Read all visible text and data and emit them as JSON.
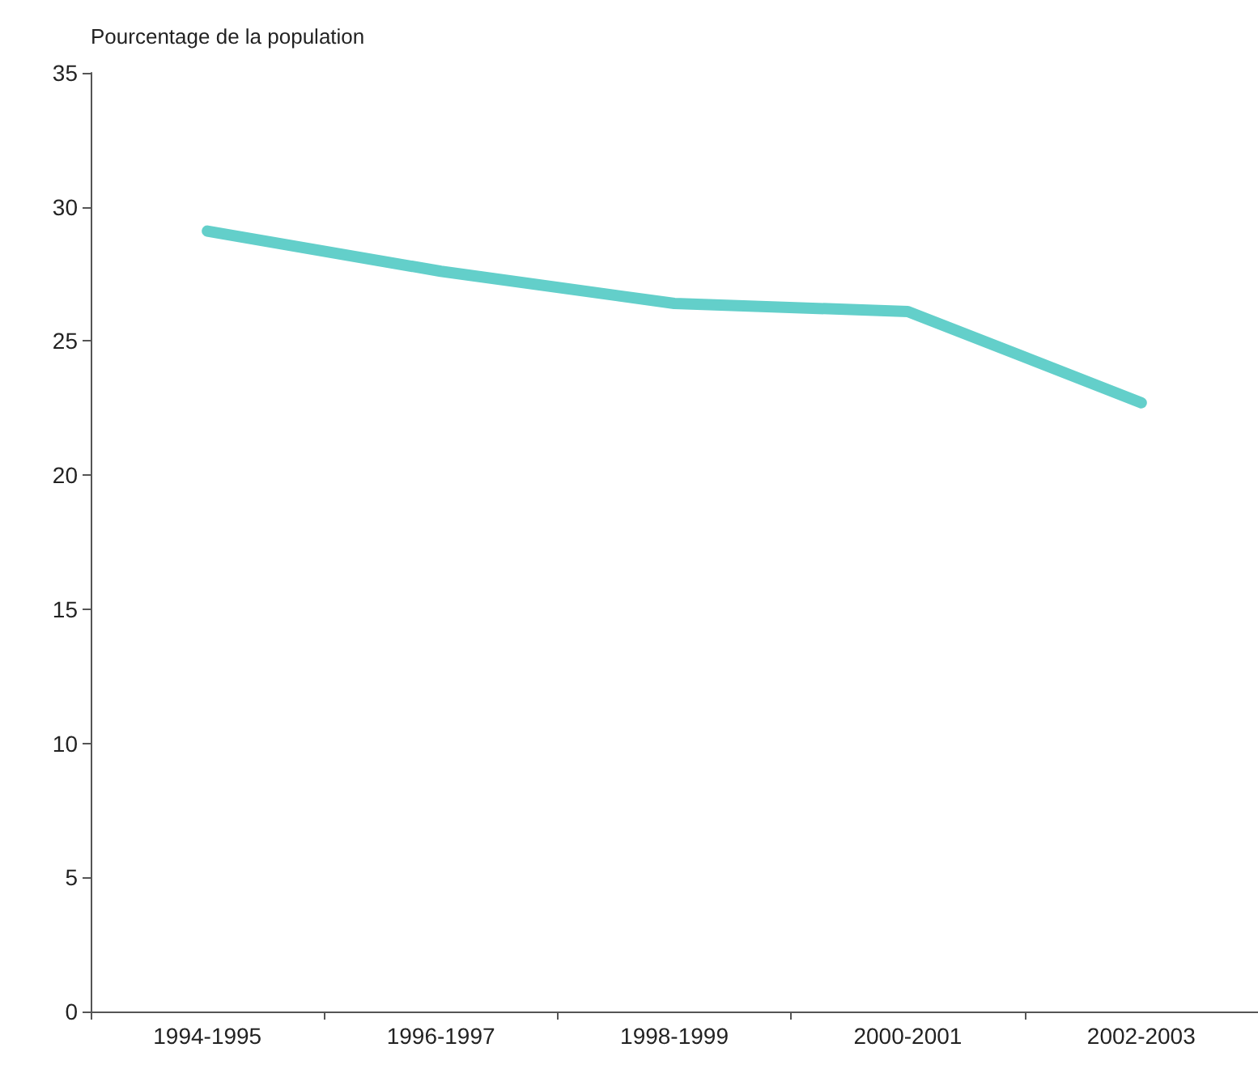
{
  "chart_data": {
    "type": "line",
    "ylabel": "Pourcentage de la population",
    "categories": [
      "1994-1995",
      "1996-1997",
      "1998-1999",
      "2000-2001",
      "2002-2003"
    ],
    "series": [
      {
        "color": "#63cfca",
        "values": [
          29.1,
          27.6,
          26.4,
          26.1,
          22.7
        ]
      }
    ],
    "ylim": [
      0,
      35
    ],
    "yticks": [
      0,
      5,
      10,
      15,
      20,
      25,
      30,
      35
    ],
    "grid": false,
    "marker": "none",
    "line_style": "solid"
  }
}
